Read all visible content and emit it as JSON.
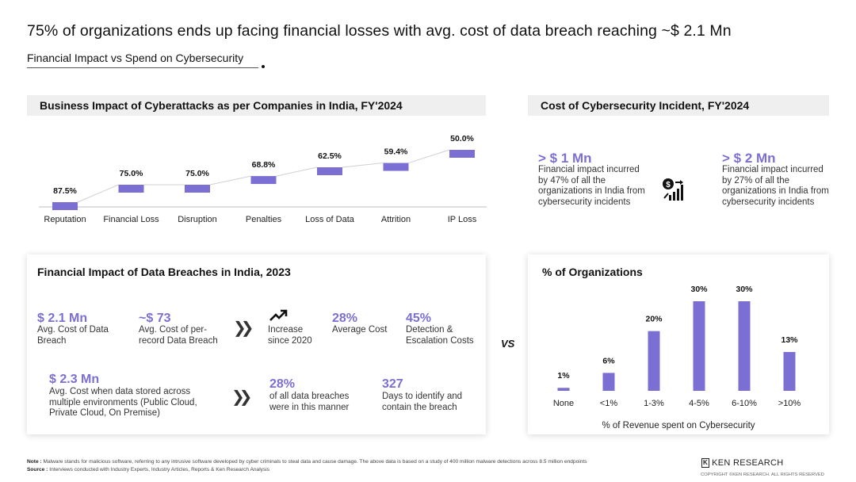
{
  "title": "75% of organizations ends up facing financial losses with avg. cost of data breach reaching ~$ 2.1 Mn",
  "subtitle": "Financial Impact vs Spend on Cybersecurity",
  "accent_color": "#7b6fd4",
  "business_impact": {
    "header": "Business Impact of Cyberattacks as per Companies in India, FY'2024"
  },
  "cost_incident": {
    "header": "Cost of Cybersecurity Incident, FY'2024",
    "left_value": "> $ 1 Mn",
    "left_label": "Financial impact incurred by 47% of all the organizations in India from cybersecurity incidents",
    "right_value": "> $ 2 Mn",
    "right_label": "Financial impact incurred by 27% of all the organizations in India from cybersecurity incidents",
    "icon": "finance-growth-icon"
  },
  "breach": {
    "title": "Financial Impact of Data Breaches in India, 2023",
    "avg_cost_value": "$ 2.1 Mn",
    "avg_cost_label": "Avg. Cost of Data Breach",
    "per_record_value": "~$ 73",
    "per_record_label": "Avg. Cost of per-record Data Breach",
    "increase_label": "Increase since 2020",
    "avg_increase_value": "28%",
    "avg_increase_label": "Average Cost",
    "detection_value": "45%",
    "detection_label": "Detection & Escalation Costs",
    "multi_env_value": "$ 2.3 Mn",
    "multi_env_label": "Avg. Cost when data stored across multiple environments (Public Cloud, Private Cloud, On Premise)",
    "share_value": "28%",
    "share_label": "of all data breaches were in this manner",
    "days_value": "327",
    "days_label": "Days to identify and contain the breach"
  },
  "orgs": {
    "title": "% of Organizations"
  },
  "vs_label": "VS",
  "note_label": "Note :",
  "note_text": "Malware stands for malicious software, referring to any intrusive software developed by cyber criminals to steal data and cause damage. The above data is based on a study of 400 million malware detections across 8.5 million endpoints",
  "source_label": "Source :",
  "source_text": "Interviews conducted with Industry Experts, Industry Articles, Reports & Ken Research Analysis",
  "brand": "KEN RESEARCH",
  "copyright": "COPYRIGHT ©KEN RESEARCH. ALL RIGHTS RESERVED",
  "chart_data": [
    {
      "type": "bar",
      "title": "Business Impact of Cyberattacks as per Companies in India, FY'2024",
      "categories": [
        "Reputation",
        "Financial Loss",
        "Disruption",
        "Penalties",
        "Loss of Data",
        "Attrition",
        "IP Loss"
      ],
      "values": [
        87.5,
        75.0,
        75.0,
        68.8,
        62.5,
        59.4,
        50.0
      ],
      "labels": [
        "87.5%",
        "75.0%",
        "75.0%",
        "68.8%",
        "62.5%",
        "59.4%",
        "50.0%"
      ],
      "color": "#7b6fd4"
    },
    {
      "type": "bar",
      "title": "% of Organizations",
      "categories": [
        "None",
        "<1%",
        "1-3%",
        "4-5%",
        "6-10%",
        ">10%"
      ],
      "values": [
        1,
        6,
        20,
        30,
        30,
        13
      ],
      "labels": [
        "1%",
        "6%",
        "20%",
        "30%",
        "30%",
        "13%"
      ],
      "xlabel": "% of Revenue spent on Cybersecurity",
      "ylim": [
        0,
        30
      ],
      "color": "#7b6fd4"
    }
  ]
}
